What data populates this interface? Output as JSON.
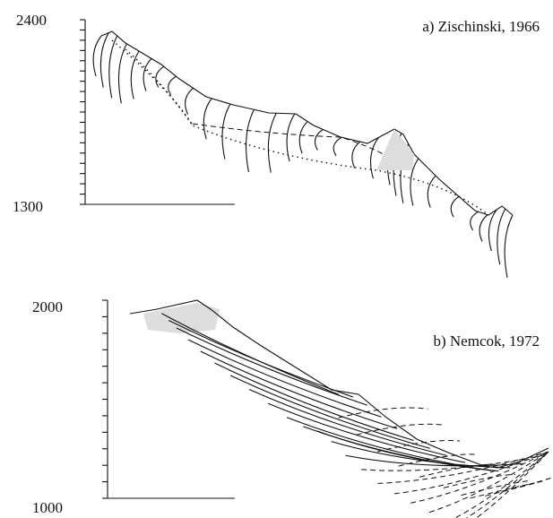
{
  "panels": [
    {
      "label": "a) Zischinski, 1966",
      "axis_top": "2400",
      "axis_bottom": "1300"
    },
    {
      "label": "b) Nemcok, 1972",
      "axis_top": "2000",
      "axis_bottom": "1000"
    }
  ]
}
